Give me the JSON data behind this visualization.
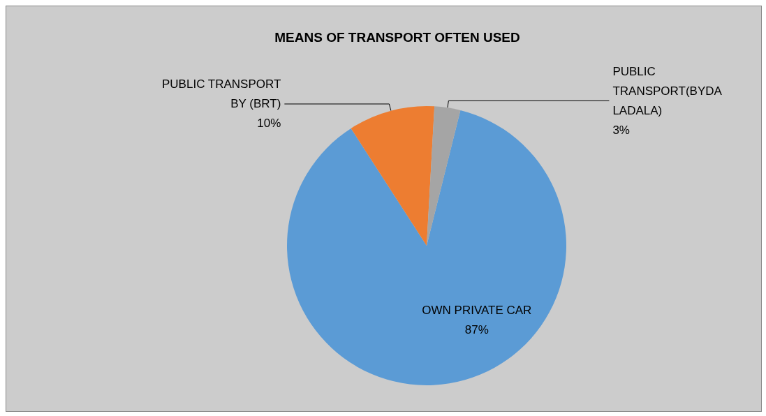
{
  "chart_data": {
    "type": "pie",
    "title": "MEANS OF TRANSPORT OFTEN USED",
    "categories": [
      "OWN PRIVATE CAR",
      "PUBLIC TRANSPORT BY (BRT)",
      "PUBLIC TRANSPORT(BYDA LADALA)"
    ],
    "values": [
      87,
      10,
      3
    ],
    "colors": [
      "#5b9bd5",
      "#ed7d31",
      "#a5a5a5"
    ],
    "value_labels": [
      "87%",
      "10%",
      "3%"
    ],
    "legend": false
  }
}
